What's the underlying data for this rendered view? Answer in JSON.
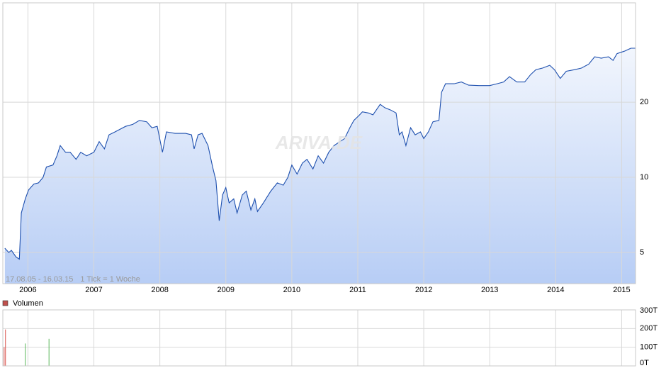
{
  "chart_data": [
    {
      "type": "area",
      "log": true,
      "grid": true,
      "color": "#1d4fae",
      "fill_top": "#f2f6fd",
      "fill_bottom": "#b7cdf5",
      "watermark": "ARIVA.DE",
      "range_label": "17.08.05 - 16.03.15",
      "tick_label": "1 Tick = 1 Woche",
      "xlim": [
        2005.62,
        2015.21
      ],
      "xticks": [
        2006,
        2007,
        2008,
        2009,
        2010,
        2011,
        2012,
        2013,
        2014,
        2015
      ],
      "ylim": [
        3.75,
        50
      ],
      "yticks": [
        5,
        10,
        20
      ],
      "x": [
        2005.65,
        2005.71,
        2005.75,
        2005.82,
        2005.87,
        2005.9,
        2005.96,
        2006.01,
        2006.09,
        2006.16,
        2006.23,
        2006.28,
        2006.38,
        2006.44,
        2006.49,
        2006.57,
        2006.64,
        2006.73,
        2006.8,
        2006.89,
        2007.0,
        2007.08,
        2007.16,
        2007.23,
        2007.32,
        2007.4,
        2007.48,
        2007.59,
        2007.69,
        2007.8,
        2007.88,
        2007.96,
        2008.04,
        2008.1,
        2008.23,
        2008.39,
        2008.48,
        2008.52,
        2008.58,
        2008.64,
        2008.73,
        2008.8,
        2008.85,
        2008.9,
        2008.95,
        2009.0,
        2009.05,
        2009.12,
        2009.17,
        2009.25,
        2009.31,
        2009.38,
        2009.44,
        2009.48,
        2009.57,
        2009.68,
        2009.78,
        2009.87,
        2009.94,
        2010.0,
        2010.08,
        2010.16,
        2010.23,
        2010.32,
        2010.4,
        2010.48,
        2010.56,
        2010.64,
        2010.73,
        2010.8,
        2010.88,
        2010.94,
        2011.02,
        2011.07,
        2011.16,
        2011.23,
        2011.34,
        2011.41,
        2011.5,
        2011.58,
        2011.63,
        2011.67,
        2011.73,
        2011.8,
        2011.87,
        2011.95,
        2012.0,
        2012.07,
        2012.14,
        2012.23,
        2012.27,
        2012.33,
        2012.46,
        2012.57,
        2012.68,
        2012.84,
        2013.0,
        2013.11,
        2013.21,
        2013.3,
        2013.41,
        2013.53,
        2013.62,
        2013.7,
        2013.8,
        2013.91,
        2013.98,
        2014.07,
        2014.16,
        2014.29,
        2014.39,
        2014.5,
        2014.59,
        2014.69,
        2014.8,
        2014.87,
        2014.93,
        2015.04,
        2015.14,
        2015.21
      ],
      "values": [
        5.2,
        5.0,
        5.1,
        4.8,
        4.7,
        7.2,
        8.2,
        8.9,
        9.4,
        9.5,
        10.0,
        11.0,
        11.2,
        12.2,
        13.4,
        12.6,
        12.6,
        11.8,
        12.6,
        12.2,
        12.6,
        13.9,
        13.0,
        14.8,
        15.2,
        15.6,
        16.0,
        16.3,
        16.9,
        16.7,
        15.8,
        16.0,
        12.6,
        15.2,
        15.0,
        15.0,
        14.8,
        13.0,
        14.8,
        15.0,
        13.4,
        11.0,
        9.7,
        6.7,
        8.5,
        9.1,
        7.9,
        8.2,
        7.2,
        8.5,
        8.8,
        7.4,
        8.2,
        7.3,
        7.9,
        8.8,
        9.5,
        9.3,
        10.0,
        11.2,
        10.3,
        11.4,
        11.8,
        10.8,
        12.2,
        11.4,
        12.6,
        13.4,
        13.9,
        14.3,
        15.8,
        16.9,
        17.7,
        18.3,
        18.1,
        17.8,
        19.6,
        19.0,
        18.6,
        18.1,
        14.8,
        15.2,
        13.4,
        15.8,
        14.8,
        15.2,
        14.3,
        15.2,
        16.7,
        16.9,
        21.9,
        23.7,
        23.7,
        24.1,
        23.4,
        23.3,
        23.3,
        23.7,
        24.1,
        25.3,
        24.1,
        24.1,
        25.8,
        27.0,
        27.4,
        28.1,
        27.0,
        24.9,
        26.6,
        27.0,
        27.4,
        28.4,
        30.4,
        30.0,
        30.4,
        29.4,
        31.3,
        32.0,
        32.9,
        32.9
      ]
    },
    {
      "type": "bar",
      "grid": true,
      "legend": "Volumen",
      "legend_color": "#c0504d",
      "xlim": [
        2005.62,
        2015.21
      ],
      "xticks": [
        2006,
        2007,
        2008,
        2009,
        2010,
        2011,
        2012,
        2013,
        2014,
        2015
      ],
      "ylim": [
        0,
        300
      ],
      "yticks": [
        {
          "value": 0,
          "label": "0T"
        },
        {
          "value": 100,
          "label": "100T"
        },
        {
          "value": 200,
          "label": "200T"
        },
        {
          "value": 300,
          "label": "300T"
        }
      ],
      "x": [
        2005.64,
        2005.66,
        2005.96,
        2006.32
      ],
      "values": [
        100,
        195,
        120,
        145
      ],
      "colors": [
        "#d9534f",
        "#d9534f",
        "#5cb85c",
        "#5cb85c"
      ]
    }
  ]
}
